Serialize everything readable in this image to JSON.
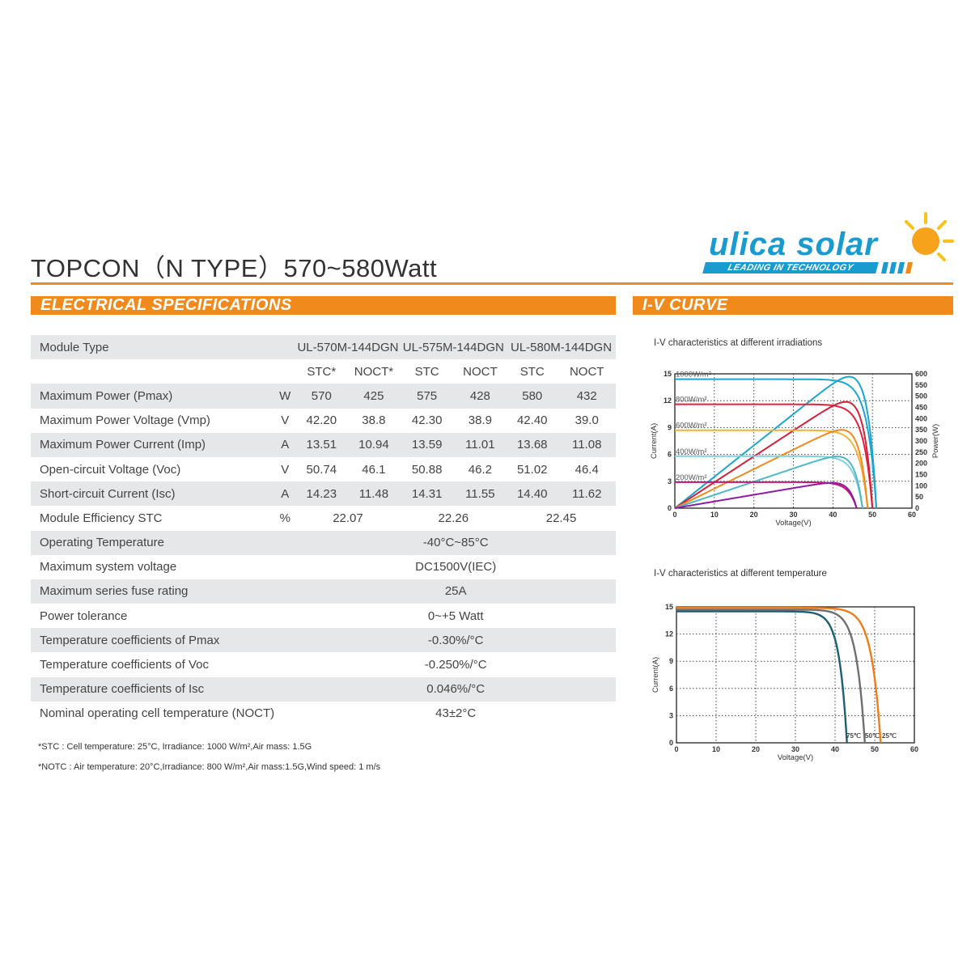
{
  "title": "TOPCON（N TYPE）570~580Watt",
  "logo": {
    "name": "ulica solar",
    "tagline": "LEADING IN TECHNOLOGY"
  },
  "colors": {
    "accent": "#f08a1c",
    "logo_blue": "#1a9bd0",
    "row_shade": "#e6e7e9"
  },
  "sections": {
    "electrical": "ELECTRICAL SPECIFICATIONS",
    "iv": "I-V CURVE"
  },
  "spec": {
    "header": {
      "label": "Module Type",
      "models": [
        "UL-570M-144DGN",
        "UL-575M-144DGN",
        "UL-580M-144DGN"
      ]
    },
    "subheader": [
      "STC*",
      "NOCT*",
      "STC",
      "NOCT",
      "STC",
      "NOCT"
    ],
    "rows": [
      {
        "label": "Maximum Power (Pmax)",
        "unit": "W",
        "values": [
          "570",
          "425",
          "575",
          "428",
          "580",
          "432"
        ]
      },
      {
        "label": "Maximum Power Voltage (Vmp)",
        "unit": "V",
        "values": [
          "42.20",
          "38.8",
          "42.30",
          "38.9",
          "42.40",
          "39.0"
        ]
      },
      {
        "label": "Maximum Power Current (Imp)",
        "unit": "A",
        "values": [
          "13.51",
          "10.94",
          "13.59",
          "11.01",
          "13.68",
          "11.08"
        ]
      },
      {
        "label": "Open-circuit Voltage (Voc)",
        "unit": "V",
        "values": [
          "50.74",
          "46.1",
          "50.88",
          "46.2",
          "51.02",
          "46.4"
        ]
      },
      {
        "label": "Short-circuit Current (Isc)",
        "unit": "A",
        "values": [
          "14.23",
          "11.48",
          "14.31",
          "11.55",
          "14.40",
          "11.62"
        ]
      },
      {
        "label": "Module Efficiency STC",
        "unit": "%",
        "values": [
          "22.07",
          "22.26",
          "22.45"
        ]
      }
    ],
    "common_rows": [
      {
        "label": "Operating Temperature",
        "value": "-40°C~85°C"
      },
      {
        "label": "Maximum system voltage",
        "value": "DC1500V(IEC)"
      },
      {
        "label": "Maximum series fuse rating",
        "value": "25A"
      },
      {
        "label": "Power tolerance",
        "value": "0~+5 Watt"
      },
      {
        "label": "Temperature coefficients of Pmax",
        "value": "-0.30%/°C"
      },
      {
        "label": "Temperature coefficients of Voc",
        "value": "-0.250%/°C"
      },
      {
        "label": "Temperature coefficients of Isc",
        "value": "0.046%/°C"
      },
      {
        "label": "Nominal operating cell temperature (NOCT)",
        "value": "43±2°C"
      }
    ]
  },
  "notes": [
    "*STC : Cell temperature: 25°C, Irradiance: 1000 W/m²,Air mass: 1.5G",
    "*NOTC : Air temperature: 20°C,Irradiance: 800 W/m²,Air mass:1.5G,Wind speed: 1 m/s"
  ],
  "chart_data": [
    {
      "type": "line",
      "title": "I-V characteristics at different irradiations",
      "xlabel": "Voltage(V)",
      "ylabel": "Current(A)",
      "y2label": "Power(W)",
      "xlim": [
        0,
        60
      ],
      "ylim": [
        0,
        15
      ],
      "y2lim": [
        0,
        600
      ],
      "xticks": [
        "0",
        "10",
        "20",
        "30",
        "40",
        "50",
        "60"
      ],
      "yticks": [
        "0",
        "3",
        "6",
        "9",
        "12",
        "15"
      ],
      "y2ticks": [
        "0",
        "50",
        "100",
        "150",
        "200",
        "250",
        "300",
        "350",
        "400",
        "450",
        "500",
        "550",
        "600"
      ],
      "grid": true,
      "series": [
        {
          "name": "1000W/m²",
          "isc": 14.4,
          "voc": 51.0,
          "vmp": 42.4,
          "pmax": 580,
          "color_iv": "#1ba6cf",
          "color_p": "#1ba6cf"
        },
        {
          "name": "800W/m²",
          "isc": 11.6,
          "voc": 50.0,
          "vmp": 41.0,
          "pmax": 465,
          "color_iv": "#e0213e",
          "color_p": "#d61f3a"
        },
        {
          "name": "600W/m²",
          "isc": 8.7,
          "voc": 48.8,
          "vmp": 40.5,
          "pmax": 345,
          "color_iv": "#f2b13a",
          "color_p": "#f08a1c"
        },
        {
          "name": "400W/m²",
          "isc": 5.8,
          "voc": 47.5,
          "vmp": 39.5,
          "pmax": 228,
          "color_iv": "#7fd2dc",
          "color_p": "#4fb8c8"
        },
        {
          "name": "200W/m²",
          "isc": 2.9,
          "voc": 46.0,
          "vmp": 38.5,
          "pmax": 112,
          "color_iv": "#c2187a",
          "color_p": "#8e1aa0"
        }
      ]
    },
    {
      "type": "line",
      "title": "I-V characteristics at different temperature",
      "xlabel": "Voltage(V)",
      "ylabel": "Current(A)",
      "xlim": [
        0,
        60
      ],
      "ylim": [
        0,
        15
      ],
      "xticks": [
        "0",
        "10",
        "20",
        "30",
        "40",
        "50",
        "60"
      ],
      "yticks": [
        "0",
        "3",
        "6",
        "9",
        "12",
        "15"
      ],
      "grid": true,
      "series": [
        {
          "name": "75℃",
          "isc": 14.5,
          "voc": 43.0,
          "color": "#1d5f73"
        },
        {
          "name": "50℃",
          "isc": 14.7,
          "voc": 47.5,
          "color": "#6f6f6f"
        },
        {
          "name": "25℃",
          "isc": 14.9,
          "voc": 51.5,
          "color": "#ee7d1a"
        }
      ]
    }
  ]
}
